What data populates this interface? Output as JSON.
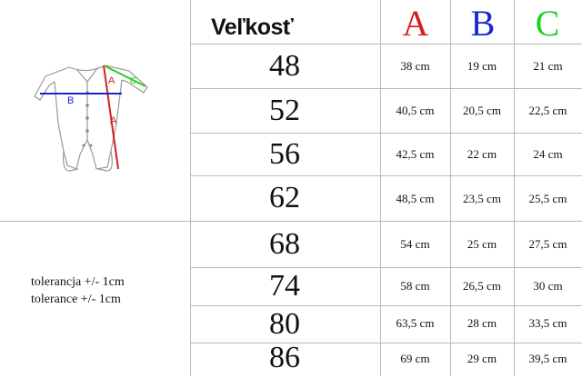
{
  "header": {
    "title": "Veľkosť",
    "columns": [
      {
        "letter": "A",
        "color": "#d42020"
      },
      {
        "letter": "B",
        "color": "#1a24d0"
      },
      {
        "letter": "C",
        "color": "#22d022"
      }
    ]
  },
  "rows": [
    {
      "size": "48",
      "a": "38 cm",
      "b": "19 cm",
      "c": "21 cm"
    },
    {
      "size": "52",
      "a": "40,5 cm",
      "b": "20,5 cm",
      "c": "22,5 cm"
    },
    {
      "size": "56",
      "a": "42,5 cm",
      "b": "22 cm",
      "c": "24 cm"
    },
    {
      "size": "62",
      "a": "48,5 cm",
      "b": "23,5 cm",
      "c": "25,5 cm"
    },
    {
      "size": "68",
      "a": "54 cm",
      "b": "25 cm",
      "c": "27,5 cm"
    },
    {
      "size": "74",
      "a": "58 cm",
      "b": "26,5 cm",
      "c": "30 cm"
    },
    {
      "size": "80",
      "a": "63,5 cm",
      "b": "28 cm",
      "c": "33,5 cm"
    },
    {
      "size": "86",
      "a": "69 cm",
      "b": "29 cm",
      "c": "39,5 cm"
    }
  ],
  "tolerance": {
    "line1": "tolerancja +/- 1cm",
    "line2": "tolerance +/- 1cm"
  },
  "diagram": {
    "label_a": "A",
    "label_b": "B",
    "label_c": "C"
  }
}
